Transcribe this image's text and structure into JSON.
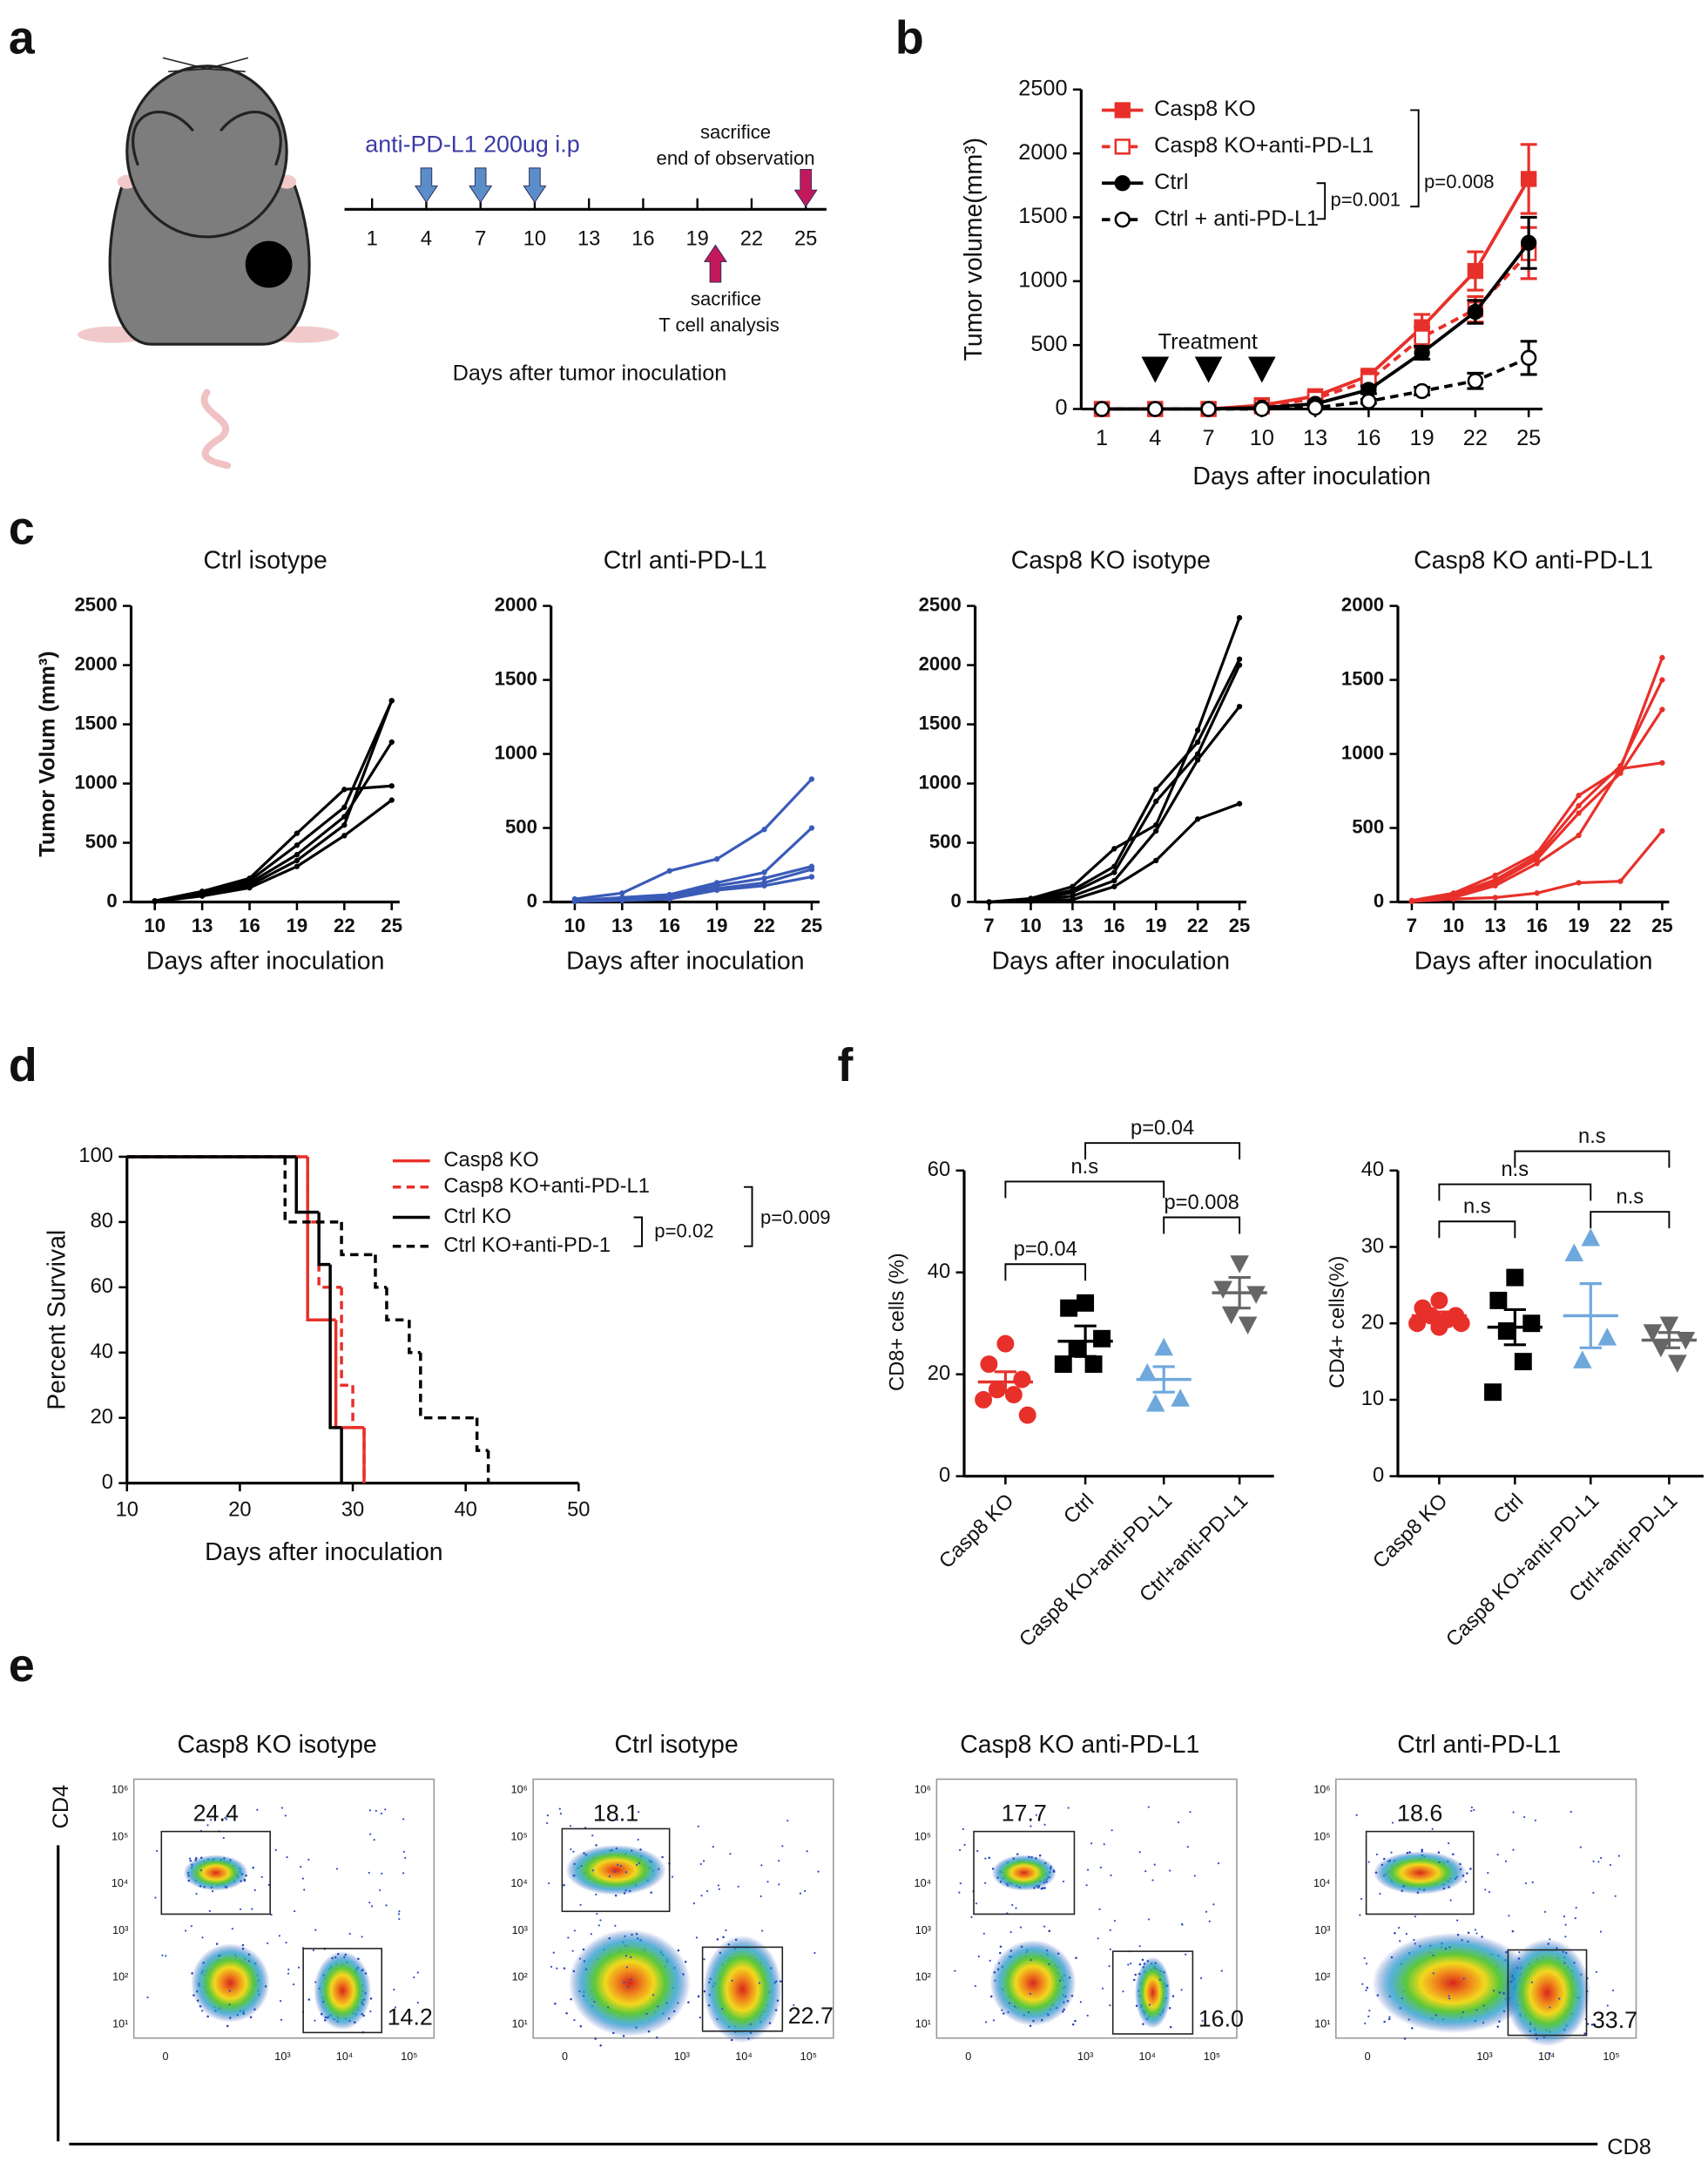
{
  "panels": [
    "a",
    "b",
    "c",
    "d",
    "e",
    "f"
  ],
  "timeline": {
    "label": "anti-PD-L1 200ug i.p",
    "days": [
      1,
      4,
      7,
      10,
      13,
      16,
      19,
      22,
      25
    ],
    "treatment_days": [
      4,
      7,
      10
    ],
    "end_day": 25,
    "end_label": [
      "sacrifice",
      "end of observation"
    ],
    "analysis_day": 20,
    "analysis_label": [
      "sacrifice",
      "T cell analysis"
    ],
    "xlabel": "Days after tumor inoculation"
  },
  "chart_data": [
    {
      "type": "line",
      "categories": [
        1,
        4,
        7,
        10,
        13,
        16,
        19,
        22,
        25
      ],
      "ylim": [
        0,
        2500
      ],
      "yticks": [
        0,
        500,
        1000,
        1500,
        2000,
        2500
      ],
      "ylabel": "Tumor volume(mm³)",
      "xlabel": "Days after inoculation",
      "series": [
        {
          "name": "Casp8 KO",
          "color": "#e8302a",
          "marker": "square",
          "filled": true,
          "dash": false,
          "values": [
            0,
            0,
            0,
            30,
            100,
            260,
            640,
            1080,
            1800
          ],
          "errors": [
            0,
            0,
            0,
            15,
            30,
            40,
            100,
            150,
            270
          ]
        },
        {
          "name": "Casp8 KO+anti-PD-L1",
          "color": "#e8302a",
          "marker": "square",
          "filled": false,
          "dash": true,
          "values": [
            0,
            0,
            0,
            20,
            80,
            220,
            560,
            780,
            1220
          ],
          "errors": [
            0,
            0,
            0,
            10,
            25,
            40,
            80,
            100,
            200
          ]
        },
        {
          "name": "Ctrl",
          "color": "#000000",
          "marker": "circle",
          "filled": true,
          "dash": false,
          "values": [
            0,
            0,
            0,
            10,
            40,
            150,
            440,
            760,
            1300
          ],
          "errors": [
            0,
            0,
            0,
            5,
            15,
            30,
            50,
            90,
            200
          ]
        },
        {
          "name": "Ctrl + anti-PD-L1",
          "color": "#000000",
          "marker": "circle",
          "filled": false,
          "dash": true,
          "values": [
            0,
            0,
            0,
            0,
            10,
            60,
            140,
            220,
            400
          ],
          "errors": [
            0,
            0,
            0,
            0,
            5,
            15,
            30,
            60,
            130
          ]
        }
      ],
      "treatment": {
        "label": "Treatment",
        "days": [
          4,
          7,
          10
        ]
      },
      "annotations": [
        "p=0.001",
        "p=0.008"
      ]
    },
    {
      "type": "line",
      "title": "Ctrl isotype",
      "ylabel": "Tumor Volum (mm³)",
      "xlabel": "Days after inoculation",
      "x": [
        10,
        13,
        16,
        19,
        22,
        25
      ],
      "xlim": [
        8.5,
        25.5
      ],
      "xticks": [
        10,
        13,
        16,
        19,
        22,
        25
      ],
      "ylim": [
        0,
        2500
      ],
      "yticks": [
        0,
        500,
        1000,
        1500,
        2000,
        2500
      ],
      "series": [
        {
          "color": "#000000",
          "values": [
            10,
            90,
            200,
            580,
            950,
            980
          ]
        },
        {
          "color": "#000000",
          "values": [
            8,
            80,
            180,
            480,
            800,
            1700
          ]
        },
        {
          "color": "#000000",
          "values": [
            5,
            70,
            160,
            400,
            720,
            1350
          ]
        },
        {
          "color": "#000000",
          "values": [
            5,
            60,
            140,
            350,
            650,
            1700
          ]
        },
        {
          "color": "#000000",
          "values": [
            3,
            50,
            120,
            300,
            560,
            860
          ]
        }
      ]
    },
    {
      "type": "line",
      "title": "Ctrl anti-PD-L1",
      "xlabel": "Days after inoculation",
      "x": [
        10,
        13,
        16,
        19,
        22,
        25
      ],
      "xlim": [
        8.5,
        25.5
      ],
      "xticks": [
        10,
        13,
        16,
        19,
        22,
        25
      ],
      "ylim": [
        0,
        2000
      ],
      "yticks": [
        0,
        500,
        1000,
        1500,
        2000
      ],
      "series": [
        {
          "color": "#3a5bb8",
          "values": [
            20,
            60,
            210,
            290,
            490,
            830
          ]
        },
        {
          "color": "#3a5bb8",
          "values": [
            10,
            30,
            50,
            130,
            200,
            500
          ]
        },
        {
          "color": "#3a5bb8",
          "values": [
            5,
            20,
            40,
            110,
            160,
            240
          ]
        },
        {
          "color": "#3a5bb8",
          "values": [
            5,
            15,
            30,
            90,
            130,
            220
          ]
        },
        {
          "color": "#3a5bb8",
          "values": [
            3,
            10,
            20,
            80,
            110,
            170
          ]
        }
      ]
    },
    {
      "type": "line",
      "title": "Casp8 KO isotype",
      "xlabel": "Days after inoculation",
      "x": [
        7,
        10,
        13,
        16,
        19,
        22,
        25
      ],
      "xlim": [
        6,
        25.5
      ],
      "xticks": [
        7,
        10,
        13,
        16,
        19,
        22,
        25
      ],
      "ylim": [
        0,
        2500
      ],
      "yticks": [
        0,
        500,
        1000,
        1500,
        2000,
        2500
      ],
      "series": [
        {
          "color": "#000000",
          "values": [
            0,
            30,
            130,
            450,
            650,
            1450,
            2400
          ]
        },
        {
          "color": "#000000",
          "values": [
            0,
            20,
            100,
            300,
            950,
            1350,
            2050
          ]
        },
        {
          "color": "#000000",
          "values": [
            0,
            15,
            80,
            250,
            850,
            1250,
            2000
          ]
        },
        {
          "color": "#000000",
          "values": [
            0,
            10,
            50,
            180,
            600,
            1200,
            1650
          ]
        },
        {
          "color": "#000000",
          "values": [
            0,
            5,
            20,
            130,
            350,
            700,
            830
          ]
        }
      ]
    },
    {
      "type": "line",
      "title": "Casp8 KO anti-PD-L1",
      "xlabel": "Days after inoculation",
      "x": [
        7,
        10,
        13,
        16,
        19,
        22,
        25
      ],
      "xlim": [
        6,
        25.5
      ],
      "xticks": [
        7,
        10,
        13,
        16,
        19,
        22,
        25
      ],
      "ylim": [
        0,
        2000
      ],
      "yticks": [
        0,
        500,
        1000,
        1500,
        2000
      ],
      "series": [
        {
          "color": "#e8302a",
          "values": [
            10,
            60,
            180,
            330,
            720,
            900,
            1650
          ]
        },
        {
          "color": "#e8302a",
          "values": [
            8,
            50,
            150,
            310,
            650,
            920,
            1500
          ]
        },
        {
          "color": "#e8302a",
          "values": [
            5,
            40,
            130,
            290,
            600,
            870,
            1300
          ]
        },
        {
          "color": "#e8302a",
          "values": [
            5,
            30,
            110,
            260,
            450,
            900,
            940
          ]
        },
        {
          "color": "#e8302a",
          "values": [
            3,
            20,
            30,
            60,
            130,
            140,
            480
          ]
        }
      ]
    },
    {
      "type": "survival",
      "ylabel": "Percent Survival",
      "xlabel": "Days after inoculation",
      "xlim": [
        10,
        50
      ],
      "xticks": [
        10,
        20,
        30,
        40,
        50
      ],
      "ylim": [
        0,
        100
      ],
      "yticks": [
        0,
        20,
        40,
        60,
        80,
        100
      ],
      "series": [
        {
          "name": "Casp8  KO",
          "color": "#e8302a",
          "dash": false,
          "x": [
            10,
            26,
            28.5,
            31
          ],
          "values": [
            100,
            50,
            17,
            0
          ]
        },
        {
          "name": "Casp8  KO+anti-PD-L1",
          "color": "#e8302a",
          "dash": true,
          "x": [
            10,
            26,
            27,
            29,
            30,
            31
          ],
          "values": [
            100,
            80,
            60,
            30,
            17,
            0
          ]
        },
        {
          "name": "Ctrl KO",
          "color": "#000000",
          "dash": false,
          "x": [
            10,
            25,
            27,
            28,
            29
          ],
          "values": [
            100,
            83,
            67,
            17,
            0
          ]
        },
        {
          "name": "Ctrl KO+anti-PD-1",
          "color": "#000000",
          "dash": true,
          "x": [
            10,
            24,
            29,
            32,
            33,
            35,
            36,
            41,
            42
          ],
          "values": [
            100,
            80,
            70,
            60,
            50,
            40,
            20,
            10,
            0
          ]
        }
      ],
      "annotations": [
        "p=0.02",
        "p=0.009"
      ]
    },
    {
      "type": "dot",
      "ylabel": "CD8+ cells (%)",
      "ylim": [
        0,
        60
      ],
      "yticks": [
        0,
        20,
        40,
        60
      ],
      "categories": [
        "Casp8 KO",
        "Ctrl",
        "Casp8 KO+anti-PD-L1",
        "Ctrl+anti-PD-L1"
      ],
      "colors": [
        "#e8302a",
        "#000000",
        "#6fa8dc",
        "#666666"
      ],
      "markers": [
        "circle",
        "square",
        "triangle",
        "triangle-down"
      ],
      "points": [
        [
          26,
          22,
          19,
          17,
          16,
          15,
          12
        ],
        [
          34,
          33,
          27,
          25,
          22,
          22
        ],
        [
          25,
          20,
          15,
          14
        ],
        [
          42,
          37,
          36,
          32,
          30
        ]
      ],
      "means": [
        18.5,
        26.5,
        19,
        36
      ],
      "sems": [
        2,
        3,
        2.5,
        3
      ],
      "annotations": [
        "p=0.04",
        "n.s",
        "p=0.04",
        "p=0.008"
      ]
    },
    {
      "type": "dot",
      "ylabel": "CD4+ cells(%)",
      "ylim": [
        0,
        40
      ],
      "yticks": [
        0,
        10,
        20,
        30,
        40
      ],
      "categories": [
        "Casp8 KO",
        "Ctrl",
        "Casp8 KO+anti-PD-L1",
        "Ctrl+anti-PD-L1"
      ],
      "colors": [
        "#e8302a",
        "#000000",
        "#6fa8dc",
        "#666666"
      ],
      "markers": [
        "circle",
        "square",
        "triangle",
        "triangle-down"
      ],
      "points": [
        [
          23,
          22,
          21,
          21,
          20.5,
          20,
          20,
          19.5
        ],
        [
          26,
          23,
          20,
          19,
          15,
          11
        ],
        [
          31,
          29,
          18,
          15
        ],
        [
          20,
          19,
          18,
          17,
          15
        ]
      ],
      "means": [
        21,
        19.5,
        21,
        17.8
      ],
      "sems": [
        0.5,
        2.3,
        4.2,
        1
      ],
      "annotations": [
        "n.s",
        "n.s",
        "n.s",
        "n.s"
      ]
    }
  ],
  "flow": {
    "y_axis_label": "CD4",
    "x_axis_label": "CD8",
    "y_ticks": [
      "10¹",
      "10²",
      "10³",
      "10⁴",
      "10⁵",
      "10⁶"
    ],
    "x_ticks": [
      "0",
      "10³",
      "10⁴",
      "10⁵"
    ],
    "plots": [
      {
        "title": "Casp8 KO isotype",
        "cd4_gate": "24.4",
        "cd8_gate": "14.2"
      },
      {
        "title": "Ctrl isotype",
        "cd4_gate": "18.1",
        "cd8_gate": "22.7"
      },
      {
        "title": "Casp8 KO anti-PD-L1",
        "cd4_gate": "17.7",
        "cd8_gate": "16.0"
      },
      {
        "title": "Ctrl anti-PD-L1",
        "cd4_gate": "18.6",
        "cd8_gate": "33.7"
      }
    ]
  }
}
